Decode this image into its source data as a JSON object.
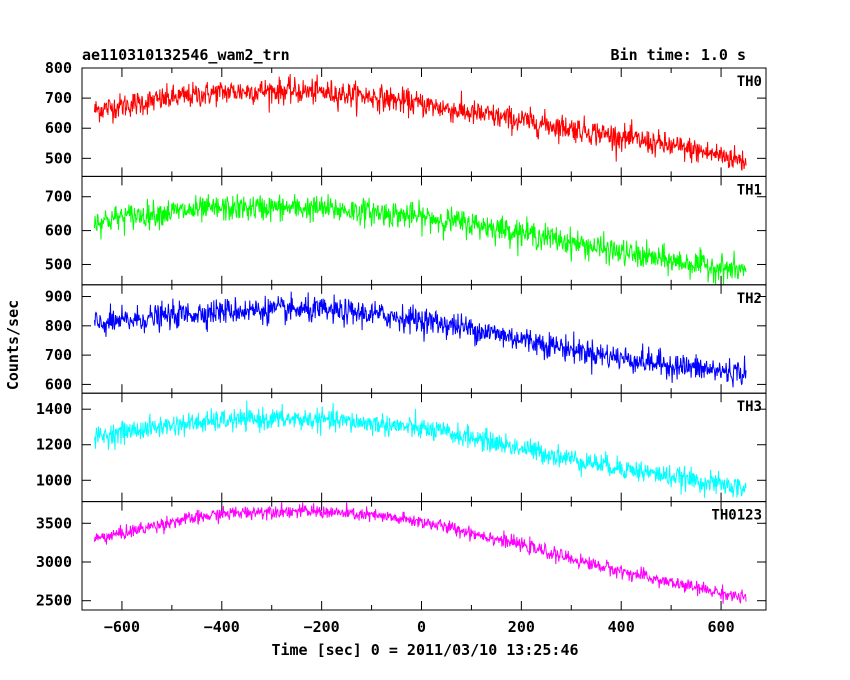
{
  "chart_data": {
    "type": "line",
    "title": "ae110310132546_wam2_trn",
    "bin_time": "Bin time: 1.0 s",
    "xlabel": "Time [sec] 0 = 2011/03/10 13:25:46",
    "ylabel": "Counts/sec",
    "xlim": [
      -680,
      690
    ],
    "x_ticks": [
      -600,
      -400,
      -200,
      0,
      200,
      400,
      600
    ],
    "x_tick_labels": [
      "−600",
      "−400",
      "−200",
      "0",
      "200",
      "400",
      "600"
    ],
    "x_range": [
      -655,
      650
    ],
    "bin_time_s": 1.0,
    "grid": false,
    "panels": [
      {
        "name": "TH0",
        "color": "#ff0000",
        "ylim": [
          440,
          800
        ],
        "y_ticks": [
          500,
          600,
          700,
          800
        ],
        "trend": {
          "x": [
            -655,
            -600,
            -500,
            -400,
            -300,
            -200,
            -100,
            0,
            100,
            200,
            300,
            400,
            500,
            600,
            650
          ],
          "y": [
            660,
            675,
            700,
            720,
            725,
            720,
            705,
            680,
            650,
            625,
            600,
            570,
            540,
            510,
            490
          ]
        },
        "noise": 38
      },
      {
        "name": "TH1",
        "color": "#00ff00",
        "ylim": [
          440,
          760
        ],
        "y_ticks": [
          500,
          600,
          700
        ],
        "trend": {
          "x": [
            -655,
            -600,
            -500,
            -400,
            -300,
            -200,
            -100,
            0,
            100,
            200,
            300,
            400,
            500,
            600,
            650
          ],
          "y": [
            625,
            640,
            655,
            665,
            668,
            665,
            655,
            640,
            620,
            595,
            565,
            535,
            510,
            490,
            480
          ]
        },
        "noise": 35
      },
      {
        "name": "TH2",
        "color": "#0000ff",
        "ylim": [
          570,
          940
        ],
        "y_ticks": [
          600,
          700,
          800,
          900
        ],
        "trend": {
          "x": [
            -655,
            -600,
            -500,
            -400,
            -300,
            -200,
            -100,
            0,
            100,
            200,
            300,
            400,
            500,
            600,
            650
          ],
          "y": [
            805,
            815,
            835,
            850,
            855,
            852,
            840,
            820,
            790,
            755,
            720,
            690,
            665,
            645,
            640
          ]
        },
        "noise": 40
      },
      {
        "name": "TH3",
        "color": "#00ffff",
        "ylim": [
          880,
          1490
        ],
        "y_ticks": [
          1000,
          1200,
          1400
        ],
        "trend": {
          "x": [
            -655,
            -600,
            -500,
            -400,
            -300,
            -200,
            -100,
            0,
            100,
            200,
            300,
            400,
            500,
            600,
            650
          ],
          "y": [
            1240,
            1270,
            1310,
            1335,
            1345,
            1340,
            1320,
            1290,
            1240,
            1180,
            1120,
            1070,
            1020,
            975,
            950
          ]
        },
        "noise": 55
      },
      {
        "name": "TH0123",
        "color": "#ff00ff",
        "ylim": [
          2380,
          3780
        ],
        "y_ticks": [
          2500,
          3000,
          3500
        ],
        "trend": {
          "x": [
            -655,
            -600,
            -500,
            -400,
            -300,
            -200,
            -100,
            0,
            100,
            200,
            300,
            400,
            500,
            600,
            650
          ],
          "y": [
            3300,
            3370,
            3520,
            3620,
            3660,
            3650,
            3600,
            3520,
            3380,
            3220,
            3040,
            2880,
            2730,
            2600,
            2530
          ]
        },
        "noise": 80
      }
    ]
  }
}
